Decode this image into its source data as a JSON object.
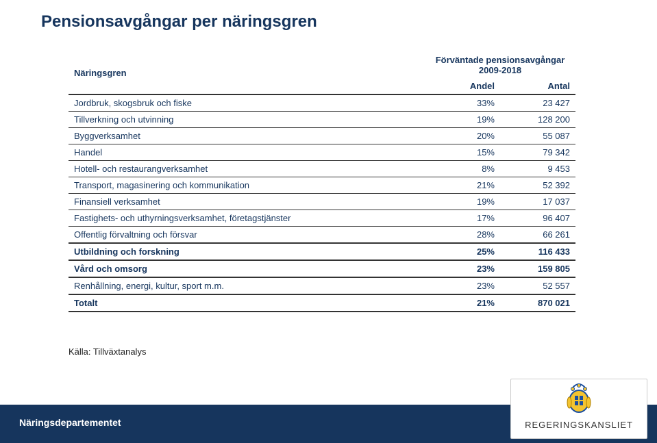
{
  "title": "Pensionsavgångar per näringsgren",
  "table": {
    "col_industry_header": "Näringsgren",
    "col_span_header": "Förväntade pensionsavgångar 2009-2018",
    "col_share_header": "Andel",
    "col_count_header": "Antal",
    "rows": [
      {
        "label": "Jordbruk, skogsbruk och fiske",
        "share": "33%",
        "count": "23 427",
        "style": "normal"
      },
      {
        "label": "Tillverkning och utvinning",
        "share": "19%",
        "count": "128 200",
        "style": "normal"
      },
      {
        "label": "Byggverksamhet",
        "share": "20%",
        "count": "55 087",
        "style": "normal"
      },
      {
        "label": "Handel",
        "share": "15%",
        "count": "79 342",
        "style": "normal"
      },
      {
        "label": "Hotell- och restaurangverksamhet",
        "share": "8%",
        "count": "9 453",
        "style": "normal"
      },
      {
        "label": "Transport, magasinering och kommunikation",
        "share": "21%",
        "count": "52 392",
        "style": "normal"
      },
      {
        "label": "Finansiell verksamhet",
        "share": "19%",
        "count": "17 037",
        "style": "normal"
      },
      {
        "label": "Fastighets- och uthyrningsverksamhet, företagstjänster",
        "share": "17%",
        "count": "96 407",
        "style": "normal"
      },
      {
        "label": "Offentlig förvaltning och försvar",
        "share": "28%",
        "count": "66 261",
        "style": "normal"
      },
      {
        "label": "Utbildning och forskning",
        "share": "25%",
        "count": "116 433",
        "style": "heavy"
      },
      {
        "label": "Vård och omsorg",
        "share": "23%",
        "count": "159 805",
        "style": "heavy"
      },
      {
        "label": "Renhållning, energi, kultur, sport m.m.",
        "share": "23%",
        "count": "52 557",
        "style": "normal"
      },
      {
        "label": "Totalt",
        "share": "21%",
        "count": "870 021",
        "style": "total"
      }
    ]
  },
  "source_label": "Källa: Tillväxtanalys",
  "footer": {
    "department": "Näringsdepartementet",
    "agency": "REGERINGSKANSLIET"
  },
  "colors": {
    "brand_navy": "#16355d",
    "text_dark": "#222222",
    "white": "#ffffff",
    "border": "#333333"
  }
}
